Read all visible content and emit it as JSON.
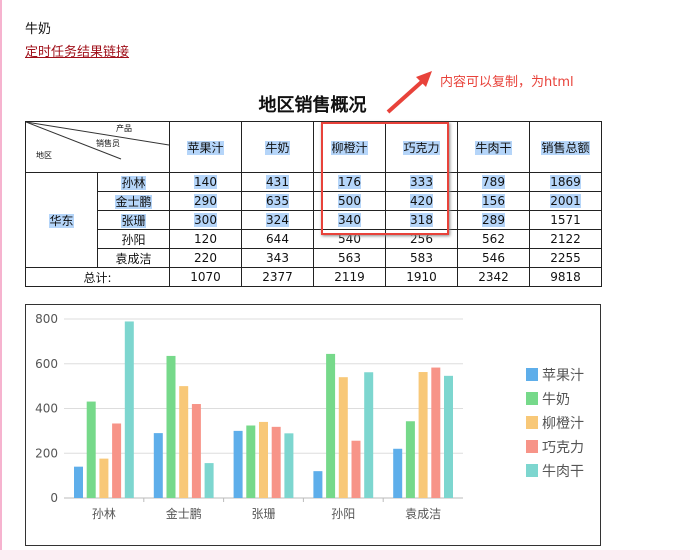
{
  "email": {
    "line1": "牛奶",
    "link": "定时任务结果链接"
  },
  "annotation": {
    "text": "内容可以复制，为html",
    "color": "#e8423a"
  },
  "report": {
    "title": "地区销售概况",
    "corner": {
      "product": "产品",
      "salesperson": "销售员",
      "region": "地区"
    },
    "columns": [
      "苹果汁",
      "牛奶",
      "柳橙汁",
      "巧克力",
      "牛肉干",
      "销售总额"
    ],
    "region": "华东",
    "rows": [
      {
        "name": "孙林",
        "values": [
          "140",
          "431",
          "176",
          "333",
          "789",
          "1869"
        ]
      },
      {
        "name": "金士鹏",
        "values": [
          "290",
          "635",
          "500",
          "420",
          "156",
          "2001"
        ]
      },
      {
        "name": "张珊",
        "values": [
          "300",
          "324",
          "340",
          "318",
          "289",
          "1571"
        ]
      },
      {
        "name": "孙阳",
        "values": [
          "120",
          "644",
          "540",
          "256",
          "562",
          "2122"
        ]
      },
      {
        "name": "袁成洁",
        "values": [
          "220",
          "343",
          "563",
          "583",
          "546",
          "2255"
        ]
      }
    ],
    "total": {
      "label": "总计:",
      "values": [
        "1070",
        "2377",
        "2119",
        "1910",
        "2342",
        "9818"
      ]
    }
  },
  "chart_data": {
    "type": "bar",
    "categories": [
      "孙林",
      "金士鹏",
      "张珊",
      "孙阳",
      "袁成洁"
    ],
    "ylim": [
      0,
      800
    ],
    "yticks": [
      "0",
      "200",
      "400",
      "600",
      "800"
    ],
    "grid": true,
    "legend": "right",
    "series": [
      {
        "name": "苹果汁",
        "color": "#5eaeea",
        "values": [
          140,
          290,
          300,
          120,
          220
        ]
      },
      {
        "name": "牛奶",
        "color": "#76d98a",
        "values": [
          431,
          635,
          324,
          644,
          343
        ]
      },
      {
        "name": "柳橙汁",
        "color": "#f8c878",
        "values": [
          176,
          500,
          340,
          540,
          563
        ]
      },
      {
        "name": "巧克力",
        "color": "#f79488",
        "values": [
          333,
          420,
          318,
          256,
          583
        ]
      },
      {
        "name": "牛肉干",
        "color": "#7dd6cf",
        "values": [
          789,
          156,
          289,
          562,
          546
        ]
      }
    ]
  }
}
